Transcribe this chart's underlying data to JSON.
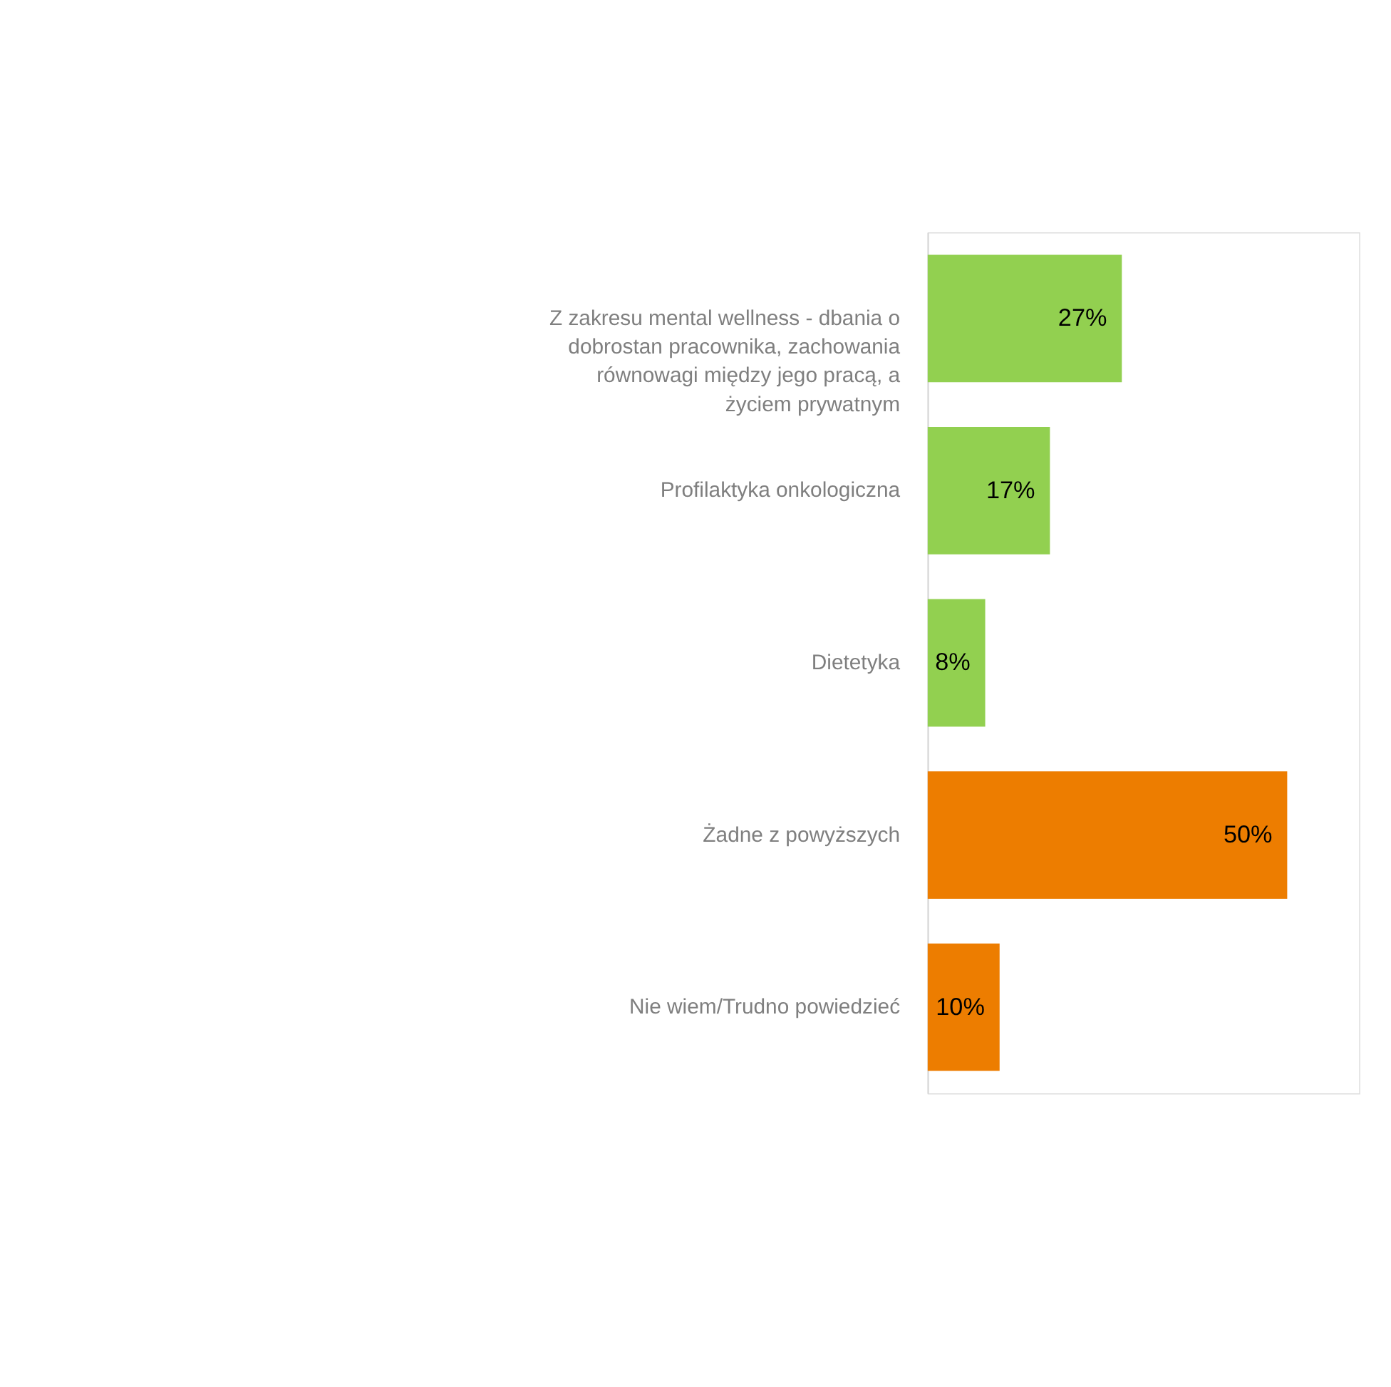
{
  "chart_data": {
    "type": "bar",
    "orientation": "horizontal",
    "categories": [
      "Z zakresu mental wellness - dbania o dobrostan pracownika, zachowania równowagi między jego pracą, a życiem prywatnym",
      "Profilaktyka onkologiczna",
      "Dietetyka",
      "Żadne z powyższych",
      "Nie wiem/Trudno powiedzieć"
    ],
    "values": [
      27,
      17,
      8,
      50,
      10
    ],
    "colors": [
      "#92d050",
      "#92d050",
      "#92d050",
      "#ed7d00",
      "#ed7d00"
    ],
    "value_labels": [
      "27%",
      "17%",
      "8%",
      "50%",
      "10%"
    ],
    "grid": false
  }
}
